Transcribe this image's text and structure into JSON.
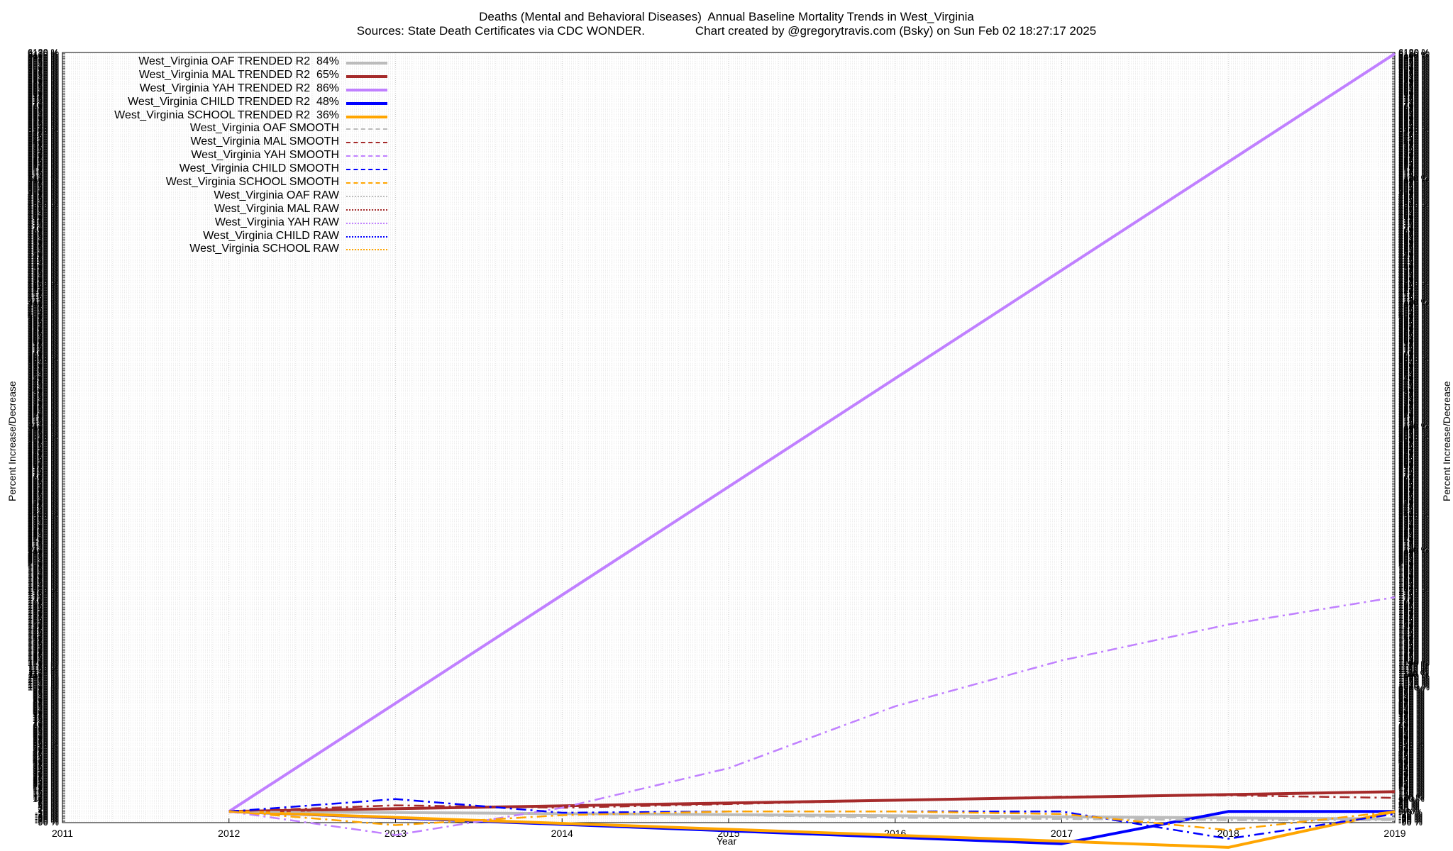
{
  "title_line1": "Deaths (Mental and Behavioral Diseases)  Annual Baseline Mortality Trends in West_Virginia",
  "title_line2": "Sources: State Death Certificates via CDC WONDER.               Chart created by @gregorytravis.com (Bsky) on Sun Feb 02 18:27:17 2025",
  "chart_data": {
    "type": "line",
    "title": "Deaths (Mental and Behavioral Diseases)  Annual Baseline Mortality Trends in West_Virginia",
    "xlabel": "Year",
    "ylabel": "Percent Increase/Decrease",
    "ylabel_right": "Percent Increase/Decrease",
    "xlim": [
      2011,
      2019
    ],
    "ylim": [
      -90,
      6130
    ],
    "x_ticks": [
      "2011",
      "2012",
      "2013",
      "2014",
      "2015",
      "2016",
      "2017",
      "2018",
      "2019"
    ],
    "y_tick_min": -90,
    "y_tick_step": 10,
    "y_tick_suffix": " %",
    "grid": true,
    "legend_position": "top-left",
    "series": [
      {
        "name": "West_Virginia OAF TRENDED R2  84%",
        "style": "solid",
        "color": "#bbbbbb",
        "x": [
          2012,
          2019
        ],
        "y": [
          0,
          -60
        ]
      },
      {
        "name": "West_Virginia MAL TRENDED R2  65%",
        "style": "solid",
        "color": "#a52a2a",
        "x": [
          2012,
          2019
        ],
        "y": [
          0,
          160
        ]
      },
      {
        "name": "West_Virginia YAH TRENDED R2  86%",
        "style": "solid",
        "color": "#c080ff",
        "x": [
          2012,
          2019
        ],
        "y": [
          0,
          6120
        ]
      },
      {
        "name": "West_Virginia CHILD TRENDED R2  48%",
        "style": "solid",
        "color": "#0000ff",
        "x": [
          2012,
          2017,
          2018,
          2019
        ],
        "y": [
          0,
          -260,
          0,
          0
        ]
      },
      {
        "name": "West_Virginia SCHOOL TRENDED R2  36%",
        "style": "solid",
        "color": "#ffa500",
        "x": [
          2012,
          2017,
          2018,
          2019
        ],
        "y": [
          0,
          -240,
          -290,
          0
        ]
      },
      {
        "name": "West_Virginia OAF SMOOTH",
        "style": "dashdot",
        "color": "#bbbbbb",
        "x": [
          2012,
          2013,
          2014,
          2015,
          2016,
          2017,
          2018,
          2019
        ],
        "y": [
          0,
          -10,
          -20,
          -30,
          -50,
          -60,
          -70,
          -70
        ]
      },
      {
        "name": "West_Virginia MAL SMOOTH",
        "style": "dashdot",
        "color": "#a52a2a",
        "x": [
          2012,
          2013,
          2014,
          2015,
          2016,
          2017,
          2018,
          2019
        ],
        "y": [
          0,
          50,
          30,
          60,
          90,
          120,
          130,
          110
        ]
      },
      {
        "name": "West_Virginia YAH SMOOTH",
        "style": "dashdot",
        "color": "#c080ff",
        "x": [
          2012,
          2013,
          2014,
          2015,
          2016,
          2017,
          2018,
          2019
        ],
        "y": [
          0,
          -190,
          30,
          350,
          850,
          1220,
          1510,
          1730
        ]
      },
      {
        "name": "West_Virginia CHILD SMOOTH",
        "style": "dashdot",
        "color": "#0000ff",
        "x": [
          2012,
          2013,
          2014,
          2015,
          2016,
          2017,
          2018,
          2019
        ],
        "y": [
          0,
          100,
          -10,
          0,
          0,
          0,
          -220,
          -20
        ]
      },
      {
        "name": "West_Virginia SCHOOL SMOOTH",
        "style": "dashdot",
        "color": "#ffa500",
        "x": [
          2012,
          2013,
          2014,
          2015,
          2016,
          2017,
          2018,
          2019
        ],
        "y": [
          0,
          -110,
          -30,
          0,
          0,
          -20,
          -150,
          0
        ]
      },
      {
        "name": "West_Virginia OAF RAW",
        "style": "dotted",
        "color": "#bbbbbb",
        "x": [],
        "y": []
      },
      {
        "name": "West_Virginia MAL RAW",
        "style": "dotted",
        "color": "#a52a2a",
        "x": [],
        "y": []
      },
      {
        "name": "West_Virginia YAH RAW",
        "style": "dotted",
        "color": "#c080ff",
        "x": [],
        "y": []
      },
      {
        "name": "West_Virginia CHILD RAW",
        "style": "dotted",
        "color": "#0000ff",
        "x": [],
        "y": []
      },
      {
        "name": "West_Virginia SCHOOL RAW",
        "style": "dotted",
        "color": "#ffa500",
        "x": [],
        "y": []
      }
    ]
  }
}
